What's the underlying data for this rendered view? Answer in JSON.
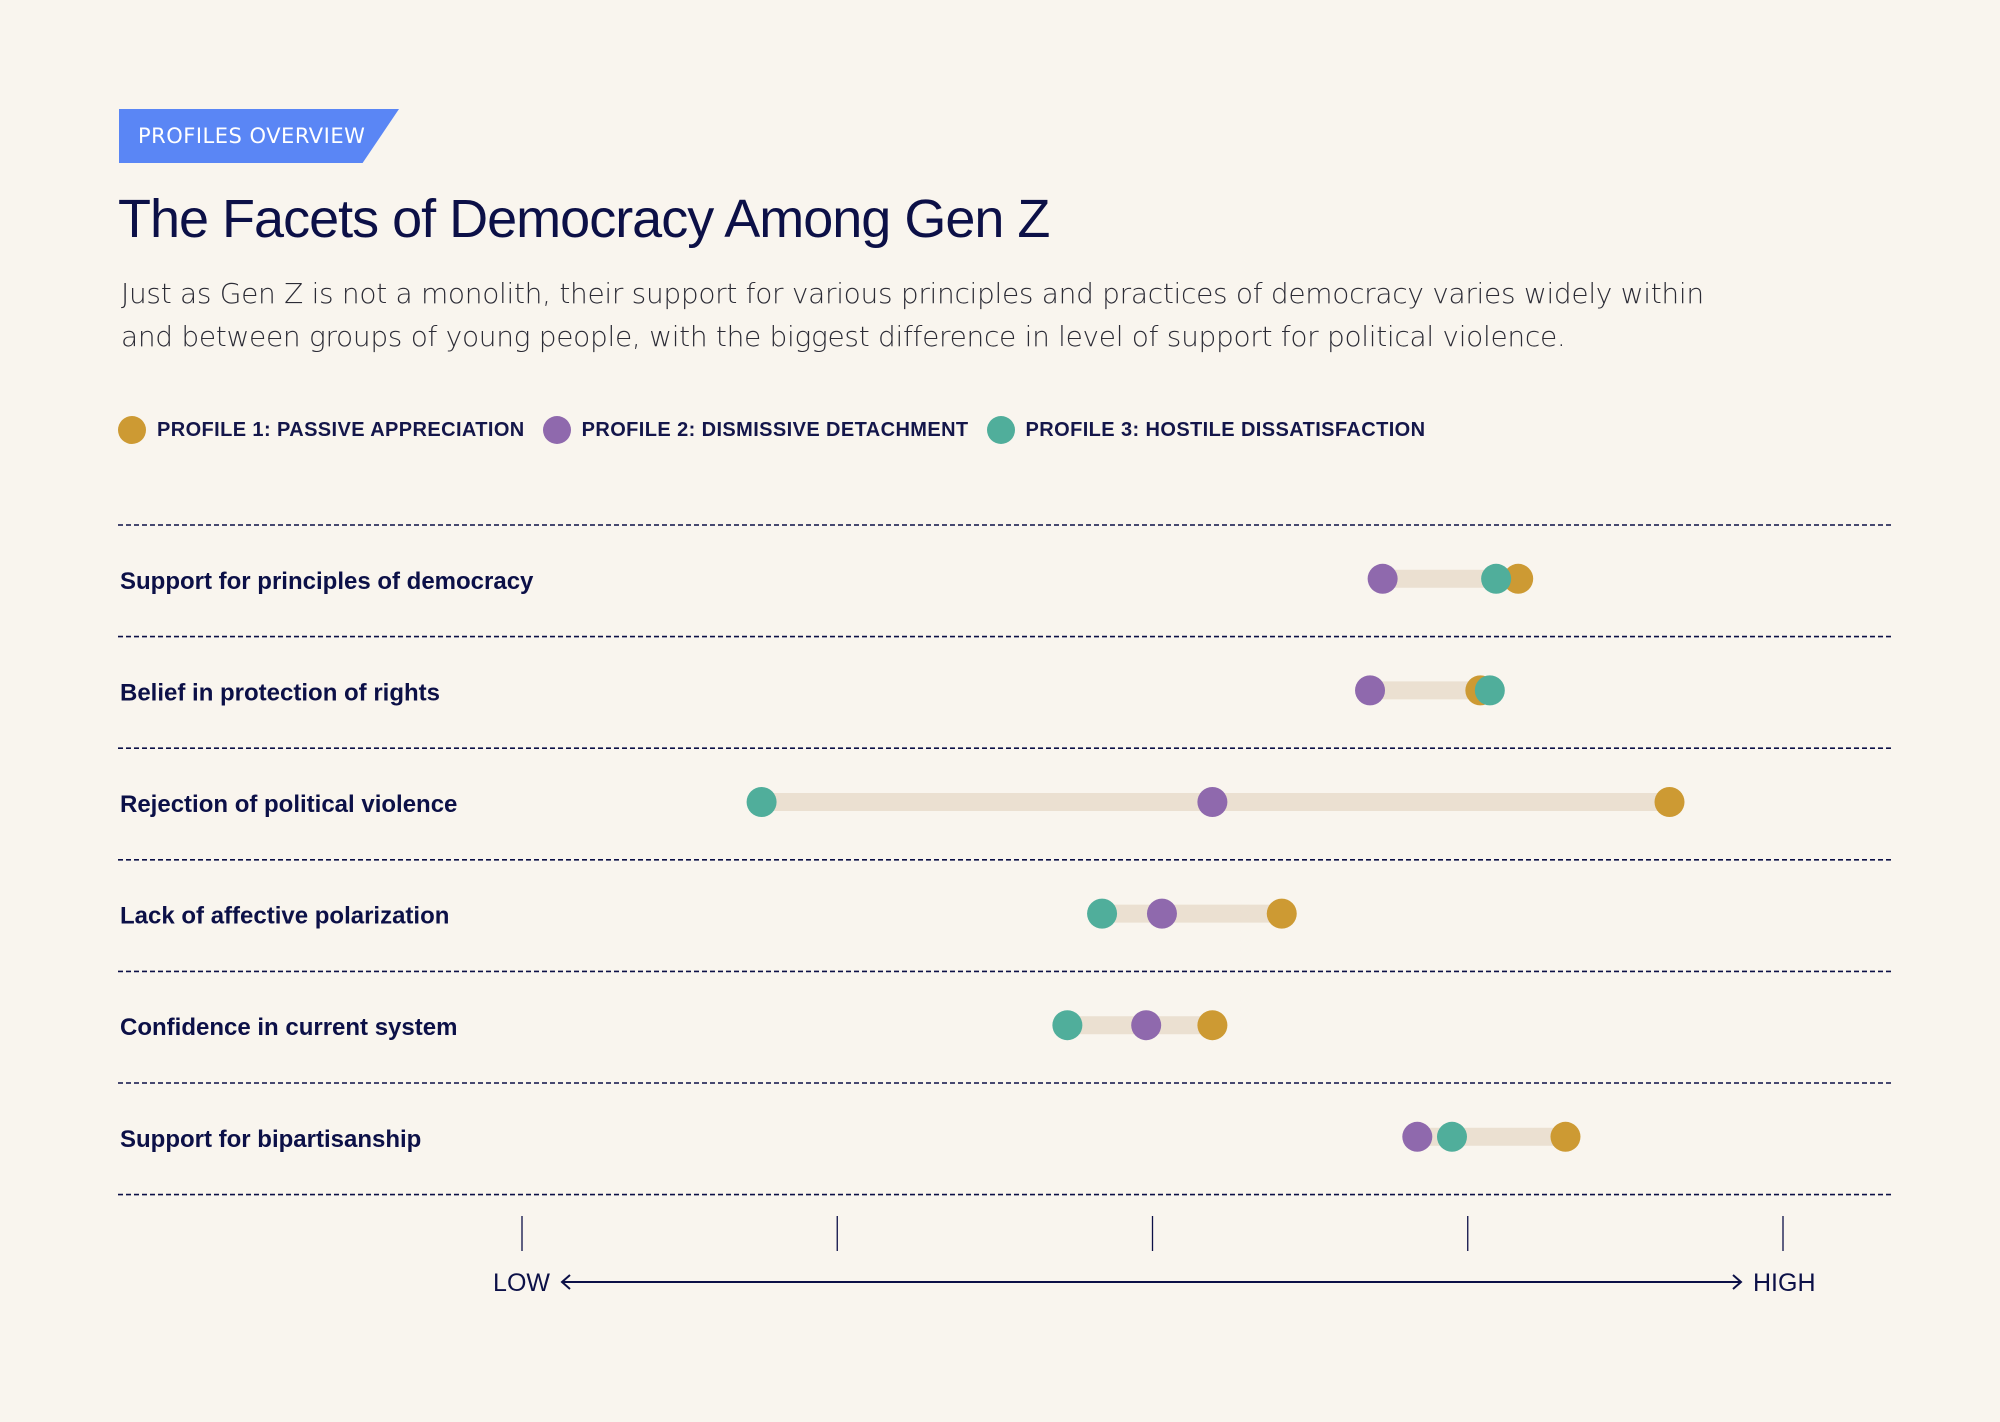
{
  "header": {
    "tag": "PROFILES OVERVIEW",
    "title": "The Facets of Democracy Among Gen Z",
    "subtitle": "Just as Gen Z is not a monolith, their support for various principles and practices of democracy varies widely within and between groups of young people, with the biggest difference in level of support for political violence."
  },
  "colors": {
    "background": "#f9f5ee",
    "tag": "#5a86f5",
    "profile1": "#cd9a33",
    "profile2": "#8f69ad",
    "profile3": "#50ae9b",
    "range_bar": "#ebe0d1",
    "ink": "#0c1047"
  },
  "legend": [
    {
      "key": "profile1",
      "label": "PROFILE 1: PASSIVE APPRECIATION"
    },
    {
      "key": "profile2",
      "label": "PROFILE 2: DISMISSIVE DETACHMENT"
    },
    {
      "key": "profile3",
      "label": "PROFILE 3: HOSTILE DISSATISFACTION"
    }
  ],
  "chart_data": {
    "type": "dot-range",
    "title": "The Facets of Democracy Among Gen Z",
    "xlabel_low": "LOW",
    "xlabel_high": "HIGH",
    "xlim": [
      0,
      4
    ],
    "ticks": [
      0,
      1,
      2,
      3,
      4
    ],
    "grid": true,
    "legend_position": "top-left",
    "categories": [
      "Support for principles of democracy",
      "Belief in protection of rights",
      "Rejection of political violence",
      "Lack of affective polarization",
      "Confidence in current system",
      "Support for bipartisanship"
    ],
    "series": [
      {
        "name": "Profile 1: Passive Appreciation",
        "key": "profile1",
        "values": [
          3.16,
          3.04,
          3.64,
          2.41,
          2.19,
          3.31
        ]
      },
      {
        "name": "Profile 2: Dismissive Detachment",
        "key": "profile2",
        "values": [
          2.73,
          2.69,
          2.19,
          2.03,
          1.98,
          2.84
        ]
      },
      {
        "name": "Profile 3: Hostile Dissatisfaction",
        "key": "profile3",
        "values": [
          3.09,
          3.07,
          0.76,
          1.84,
          1.73,
          2.95
        ]
      }
    ],
    "draw_order": [
      "profile2",
      "profile1",
      "profile3"
    ]
  }
}
